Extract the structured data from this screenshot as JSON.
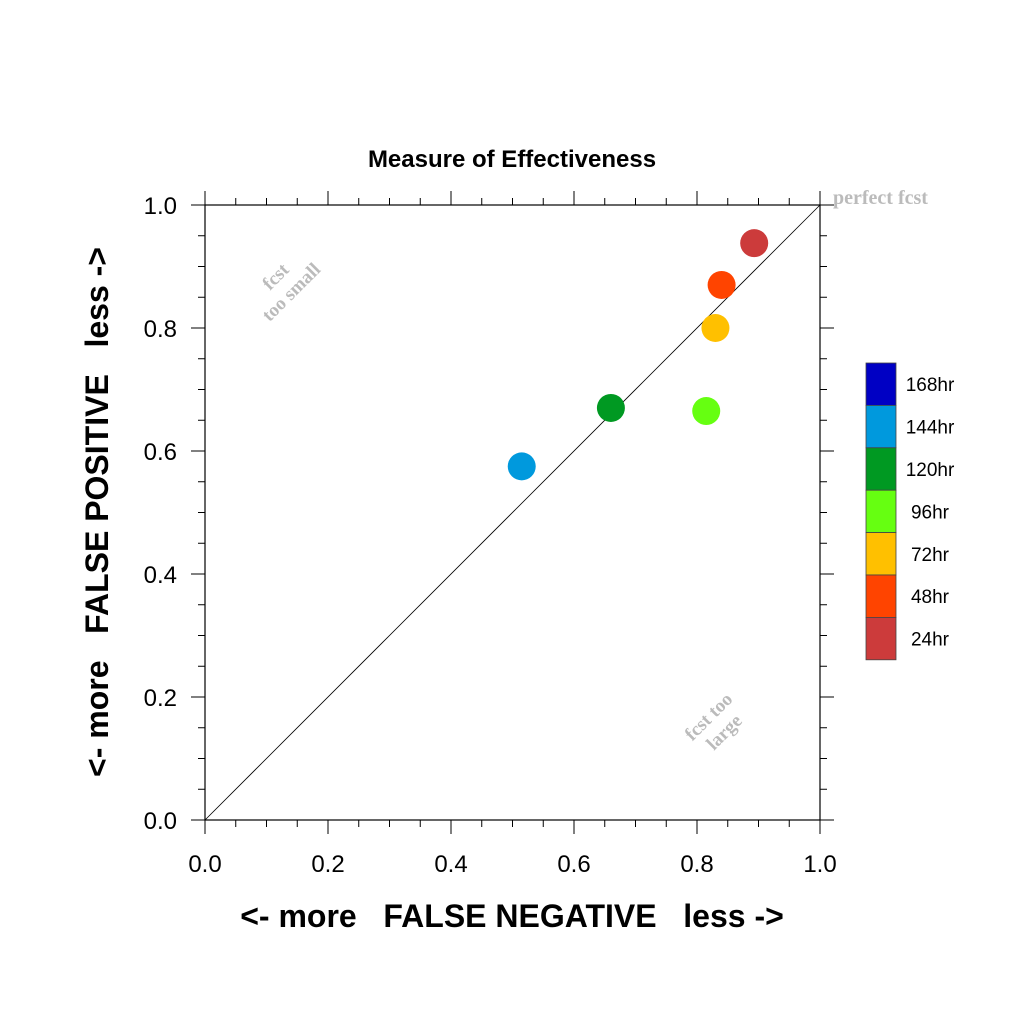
{
  "chart_data": {
    "type": "scatter",
    "title": "Measure of Effectiveness",
    "xlabel": "<- more   FALSE NEGATIVE   less ->",
    "ylabel": "<- more   FALSE POSITIVE   less ->",
    "xlim": [
      0.0,
      1.0
    ],
    "ylim": [
      0.0,
      1.0
    ],
    "x_tick_labels": [
      "0.0",
      "0.2",
      "0.4",
      "0.6",
      "0.8",
      "1.0"
    ],
    "y_tick_labels": [
      "0.0",
      "0.2",
      "0.4",
      "0.6",
      "0.8",
      "1.0"
    ],
    "grid": false,
    "diagonal_line": true,
    "annotations": {
      "perfect": "perfect fcst",
      "too_small": [
        "fcst",
        "too small"
      ],
      "too_large": [
        "fcst too",
        "large"
      ]
    },
    "legend": {
      "placement": "right",
      "entries": [
        {
          "label": "168hr",
          "color": "#0000c4"
        },
        {
          "label": "144hr",
          "color": "#0099dd"
        },
        {
          "label": "120hr",
          "color": "#009922"
        },
        {
          "label": "96hr",
          "color": "#66ff11"
        },
        {
          "label": "72hr",
          "color": "#ffc000"
        },
        {
          "label": "48hr",
          "color": "#ff4400"
        },
        {
          "label": "24hr",
          "color": "#cc3b3b"
        }
      ]
    },
    "points": [
      {
        "lead": "144hr",
        "x": 0.515,
        "y": 0.575,
        "color": "#0099dd"
      },
      {
        "lead": "120hr",
        "x": 0.66,
        "y": 0.67,
        "color": "#009922"
      },
      {
        "lead": "96hr",
        "x": 0.815,
        "y": 0.665,
        "color": "#66ff11"
      },
      {
        "lead": "72hr",
        "x": 0.83,
        "y": 0.8,
        "color": "#ffc000"
      },
      {
        "lead": "48hr",
        "x": 0.84,
        "y": 0.87,
        "color": "#ff4400"
      },
      {
        "lead": "24hr",
        "x": 0.893,
        "y": 0.938,
        "color": "#cc3b3b"
      }
    ]
  }
}
